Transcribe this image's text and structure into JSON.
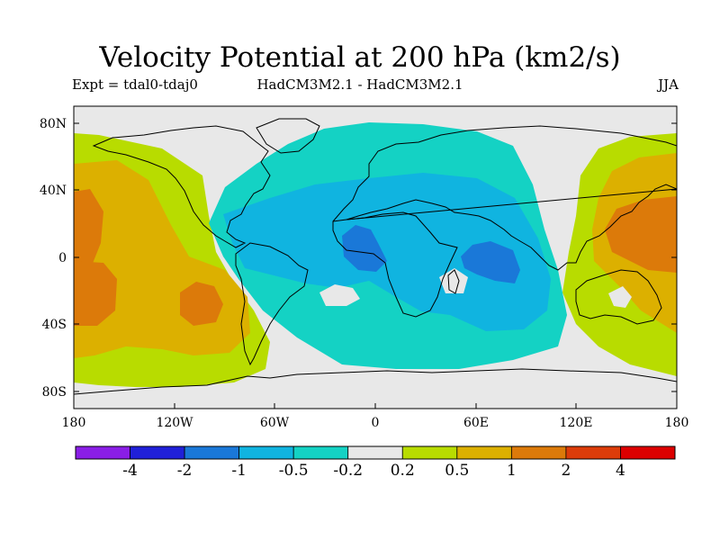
{
  "title": "Velocity Potential at 200 hPa (km2/s)",
  "subtitle_left": "Expt = tdal0-tdaj0",
  "subtitle_center": "HadCM3M2.1 - HadCM3M2.1",
  "subtitle_right": "JJA",
  "map": {
    "lat_ticks": [
      "80N",
      "40N",
      "0",
      "40S",
      "80S"
    ],
    "lon_ticks": [
      "180",
      "120W",
      "60W",
      "0",
      "60E",
      "120E",
      "180"
    ]
  },
  "colorbar": {
    "colors": [
      "#8a1ee6",
      "#2020d8",
      "#1a78d8",
      "#10b4e0",
      "#14d2c4",
      "#e8e8e8",
      "#b8dc00",
      "#dcb000",
      "#dc7a0a",
      "#dc3c0a",
      "#dc0000"
    ],
    "labels": [
      "-4",
      "-2",
      "-1",
      "-0.5",
      "-0.2",
      "0.2",
      "0.5",
      "1",
      "2",
      "4"
    ]
  },
  "palette": {
    "land_outline": "#000000",
    "background": "#e8e8e8"
  }
}
